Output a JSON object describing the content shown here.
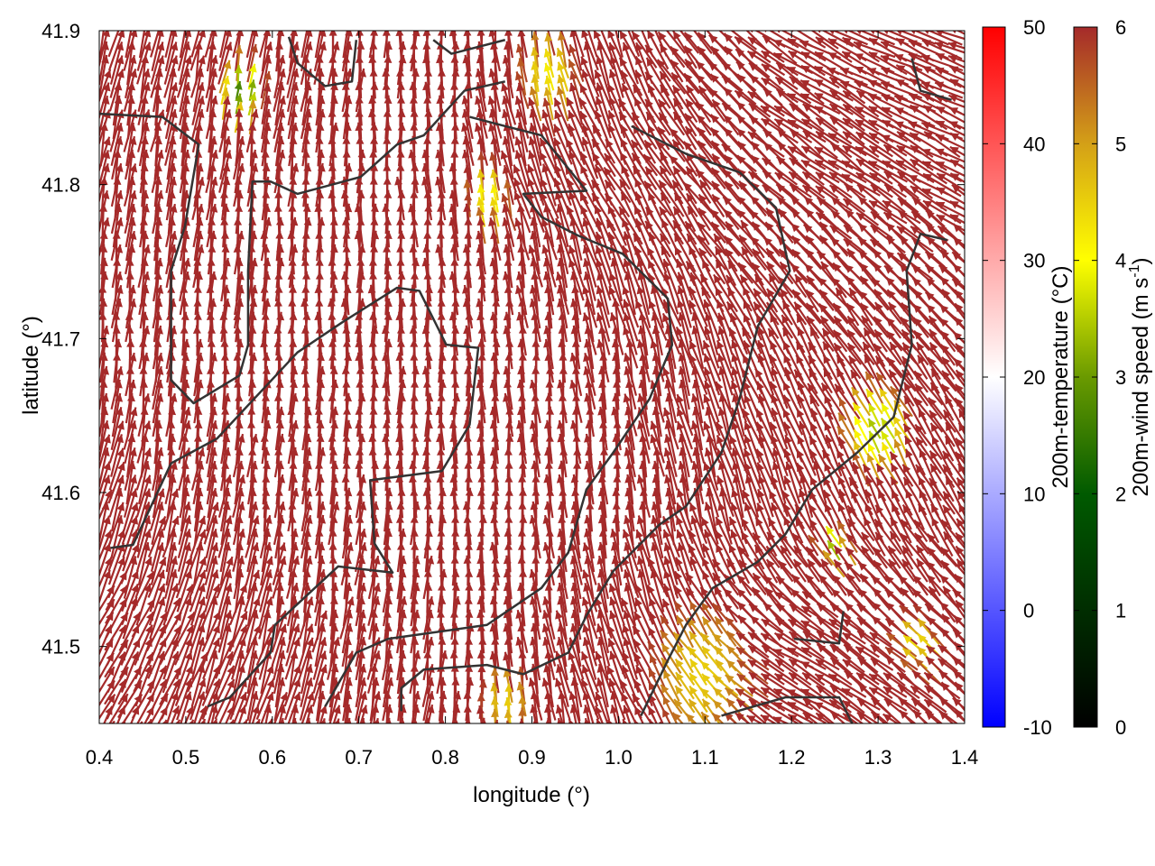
{
  "chart_data": {
    "type": "vector-field",
    "xlabel": "longitude (°)",
    "ylabel": "latitude (°)",
    "xlim": [
      0.4,
      1.4
    ],
    "ylim": [
      41.45,
      41.9
    ],
    "xticks": [
      "0.4",
      "0.5",
      "0.6",
      "0.7",
      "0.8",
      "0.9",
      "1.0",
      "1.1",
      "1.2",
      "1.3",
      "1.4"
    ],
    "yticks": [
      "41.5",
      "41.6",
      "41.7",
      "41.8",
      "41.9"
    ],
    "colorbars": [
      {
        "title": "200m-temperature (°C)",
        "range": [
          -10,
          50
        ],
        "ticks": [
          "-10",
          "0",
          "10",
          "20",
          "30",
          "40",
          "50"
        ],
        "colors": [
          "#0000ff",
          "#ffffff",
          "#ff0000"
        ]
      },
      {
        "title": "200m-wind speed (m s",
        "title_sup": "-1",
        "title_end": ")",
        "range": [
          0,
          6
        ],
        "ticks": [
          "0",
          "1",
          "2",
          "3",
          "4",
          "5",
          "6"
        ],
        "colors": [
          "#000000",
          "#005a00",
          "#6a9a00",
          "#ffff00",
          "#d4a017",
          "#a52a2a"
        ]
      }
    ],
    "wind_grid": {
      "lons": [
        0.4,
        0.6,
        0.8,
        1.0,
        1.2,
        1.4
      ],
      "lats": [
        41.9,
        41.8,
        41.7,
        41.6,
        41.5
      ],
      "direction_toward_deg": [
        [
          15,
          10,
          0,
          340,
          300,
          290
        ],
        [
          10,
          5,
          355,
          330,
          310,
          300
        ],
        [
          5,
          0,
          0,
          350,
          330,
          320
        ],
        [
          15,
          5,
          0,
          355,
          340,
          330
        ],
        [
          30,
          15,
          5,
          340,
          300,
          315
        ]
      ],
      "speed_ms": 6.5
    },
    "low_speed_zones": [
      {
        "lon": 0.565,
        "lat": 41.86,
        "radius_deg": 0.03,
        "min_speed": 2.6
      },
      {
        "lon": 0.85,
        "lat": 41.79,
        "radius_deg": 0.03,
        "min_speed": 4.0
      },
      {
        "lon": 0.92,
        "lat": 41.87,
        "radius_deg": 0.04,
        "min_speed": 4.2
      },
      {
        "lon": 1.3,
        "lat": 41.64,
        "radius_deg": 0.045,
        "min_speed": 3.4
      },
      {
        "lon": 1.25,
        "lat": 41.565,
        "radius_deg": 0.02,
        "min_speed": 3.3
      },
      {
        "lon": 1.1,
        "lat": 41.48,
        "radius_deg": 0.07,
        "min_speed": 4.5
      },
      {
        "lon": 1.35,
        "lat": 41.5,
        "radius_deg": 0.03,
        "min_speed": 4.3
      },
      {
        "lon": 0.87,
        "lat": 41.46,
        "radius_deg": 0.035,
        "min_speed": 4.5
      }
    ],
    "boundaries": [
      [
        [
          0.413,
          41.564
        ],
        [
          0.439,
          41.566
        ],
        [
          0.483,
          41.619
        ],
        [
          0.536,
          41.635
        ],
        [
          0.629,
          41.691
        ],
        [
          0.682,
          41.711
        ],
        [
          0.744,
          41.733
        ],
        [
          0.77,
          41.731
        ],
        [
          0.801,
          41.696
        ],
        [
          0.838,
          41.694
        ],
        [
          0.828,
          41.644
        ],
        [
          0.796,
          41.614
        ],
        [
          0.713,
          41.608
        ],
        [
          0.718,
          41.567
        ],
        [
          0.739,
          41.548
        ],
        [
          0.676,
          41.552
        ],
        [
          0.603,
          41.514
        ],
        [
          0.598,
          41.496
        ],
        [
          0.551,
          41.467
        ],
        [
          0.525,
          41.461
        ]
      ],
      [
        [
          0.4,
          41.846
        ],
        [
          0.473,
          41.844
        ],
        [
          0.515,
          41.826
        ],
        [
          0.499,
          41.773
        ],
        [
          0.483,
          41.744
        ],
        [
          0.483,
          41.673
        ],
        [
          0.509,
          41.658
        ],
        [
          0.562,
          41.676
        ],
        [
          0.572,
          41.696
        ],
        [
          0.572,
          41.744
        ],
        [
          0.577,
          41.802
        ],
        [
          0.598,
          41.802
        ],
        [
          0.629,
          41.794
        ],
        [
          0.702,
          41.805
        ],
        [
          0.744,
          41.826
        ],
        [
          0.775,
          41.832
        ],
        [
          0.822,
          41.861
        ],
        [
          0.869,
          41.867
        ]
      ],
      [
        [
          0.828,
          41.844
        ],
        [
          0.869,
          41.838
        ],
        [
          0.911,
          41.832
        ],
        [
          0.963,
          41.796
        ],
        [
          0.89,
          41.794
        ],
        [
          0.911,
          41.779
        ],
        [
          0.953,
          41.767
        ],
        [
          1.005,
          41.755
        ],
        [
          1.057,
          41.726
        ],
        [
          1.062,
          41.696
        ],
        [
          1.036,
          41.661
        ],
        [
          0.994,
          41.626
        ],
        [
          0.963,
          41.602
        ],
        [
          0.942,
          41.561
        ],
        [
          0.911,
          41.538
        ],
        [
          0.848,
          41.514
        ],
        [
          0.734,
          41.505
        ],
        [
          0.697,
          41.496
        ],
        [
          0.661,
          41.461
        ]
      ],
      [
        [
          1.015,
          41.838
        ],
        [
          1.078,
          41.82
        ],
        [
          1.14,
          41.808
        ],
        [
          1.182,
          41.785
        ],
        [
          1.198,
          41.744
        ],
        [
          1.161,
          41.708
        ],
        [
          1.14,
          41.661
        ],
        [
          1.119,
          41.626
        ],
        [
          1.078,
          41.591
        ],
        [
          1.047,
          41.579
        ],
        [
          0.994,
          41.549
        ],
        [
          0.963,
          41.52
        ],
        [
          0.942,
          41.496
        ],
        [
          0.89,
          41.482
        ],
        [
          0.848,
          41.488
        ],
        [
          0.775,
          41.485
        ],
        [
          0.749,
          41.473
        ],
        [
          0.749,
          41.458
        ]
      ],
      [
        [
          1.38,
          41.764
        ],
        [
          1.349,
          41.768
        ],
        [
          1.333,
          41.744
        ],
        [
          1.339,
          41.696
        ],
        [
          1.318,
          41.649
        ],
        [
          1.276,
          41.626
        ],
        [
          1.224,
          41.602
        ],
        [
          1.193,
          41.573
        ],
        [
          1.161,
          41.555
        ],
        [
          1.109,
          41.538
        ],
        [
          1.078,
          41.514
        ],
        [
          1.057,
          41.491
        ],
        [
          1.026,
          41.455
        ]
      ],
      [
        [
          1.119,
          41.455
        ],
        [
          1.193,
          41.467
        ],
        [
          1.255,
          41.467
        ],
        [
          1.271,
          41.449
        ]
      ],
      [
        [
          1.203,
          41.505
        ],
        [
          1.255,
          41.502
        ],
        [
          1.26,
          41.523
        ]
      ],
      [
        [
          0.619,
          41.896
        ],
        [
          0.629,
          41.879
        ],
        [
          0.661,
          41.864
        ],
        [
          0.692,
          41.867
        ],
        [
          0.697,
          41.894
        ]
      ],
      [
        [
          0.786,
          41.894
        ],
        [
          0.807,
          41.885
        ],
        [
          0.869,
          41.894
        ]
      ],
      [
        [
          1.339,
          41.882
        ],
        [
          1.349,
          41.861
        ],
        [
          1.385,
          41.855
        ]
      ]
    ],
    "boundary_color": "#333333"
  }
}
